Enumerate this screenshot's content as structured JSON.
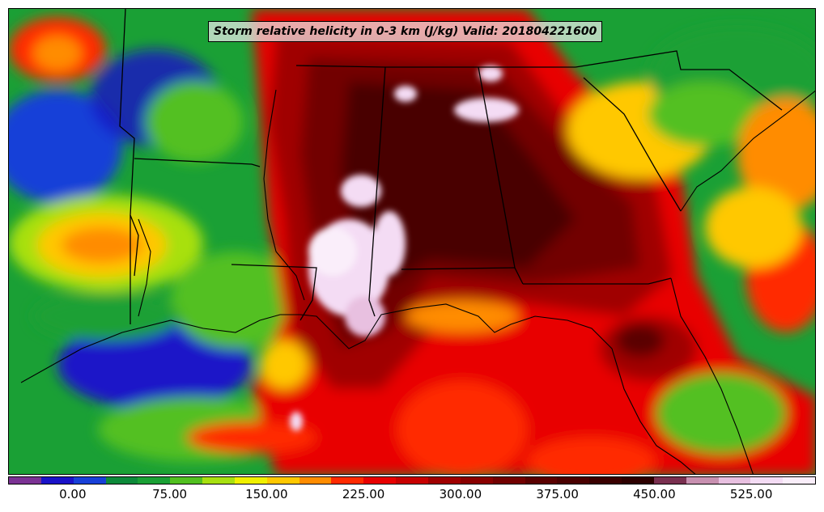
{
  "map": {
    "title": "Storm relative helicity in 0-3 km (J/kg) Valid: 201804221600",
    "variable": "Storm relative helicity 0-3 km",
    "units": "J/kg",
    "valid_time": "201804221600"
  },
  "colorbar": {
    "ticks": [
      "0.00",
      "75.00",
      "150.00",
      "225.00",
      "300.00",
      "375.00",
      "450.00",
      "525.00"
    ],
    "range": [
      -50,
      575
    ],
    "interval": 25,
    "colors": [
      "#7b3294",
      "#1a12c8",
      "#1840d8",
      "#0d8a3a",
      "#1aa035",
      "#52c020",
      "#a8e010",
      "#f0f000",
      "#ffc800",
      "#ff8c00",
      "#ff2a00",
      "#e80000",
      "#c80000",
      "#a00000",
      "#8a0000",
      "#720000",
      "#5a0000",
      "#4a0000",
      "#3a0000",
      "#2d0000",
      "#7a3050",
      "#c890b0",
      "#e8c0e0",
      "#f4dcf4",
      "#faeefa"
    ]
  },
  "colors": {
    "background": "#ffffff",
    "border": "#000000"
  }
}
